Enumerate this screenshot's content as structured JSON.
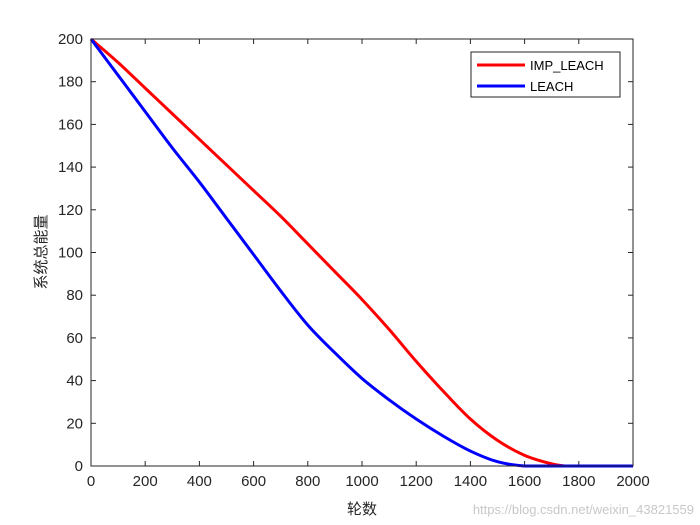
{
  "chart_data": {
    "type": "line",
    "xlabel": "轮数",
    "ylabel": "系统总能量",
    "xlim": [
      0,
      2000
    ],
    "ylim": [
      0,
      200
    ],
    "xticks": [
      0,
      200,
      400,
      600,
      800,
      1000,
      1200,
      1400,
      1600,
      1800,
      2000
    ],
    "yticks": [
      0,
      20,
      40,
      60,
      80,
      100,
      120,
      140,
      160,
      180,
      200
    ],
    "grid": false,
    "legend_position": "top-right",
    "x": [
      0,
      100,
      200,
      300,
      400,
      500,
      600,
      700,
      800,
      900,
      1000,
      1100,
      1200,
      1300,
      1400,
      1500,
      1600,
      1700,
      1750,
      1800,
      1900,
      2000
    ],
    "series": [
      {
        "name": "IMP_LEACH",
        "color": "#ff0000",
        "values": [
          200,
          189,
          177,
          165,
          153,
          141,
          129,
          117,
          104,
          91,
          78,
          64,
          49,
          35,
          22,
          12,
          5,
          1,
          0,
          0,
          0,
          0
        ]
      },
      {
        "name": "LEACH",
        "color": "#0000ff",
        "values": [
          200,
          183,
          166,
          149,
          133,
          116,
          99,
          82,
          66,
          53,
          41,
          31,
          22,
          14,
          7,
          2,
          0,
          0,
          0,
          0,
          0,
          0
        ]
      }
    ]
  },
  "watermark": "https://blog.csdn.net/weixin_43821559"
}
